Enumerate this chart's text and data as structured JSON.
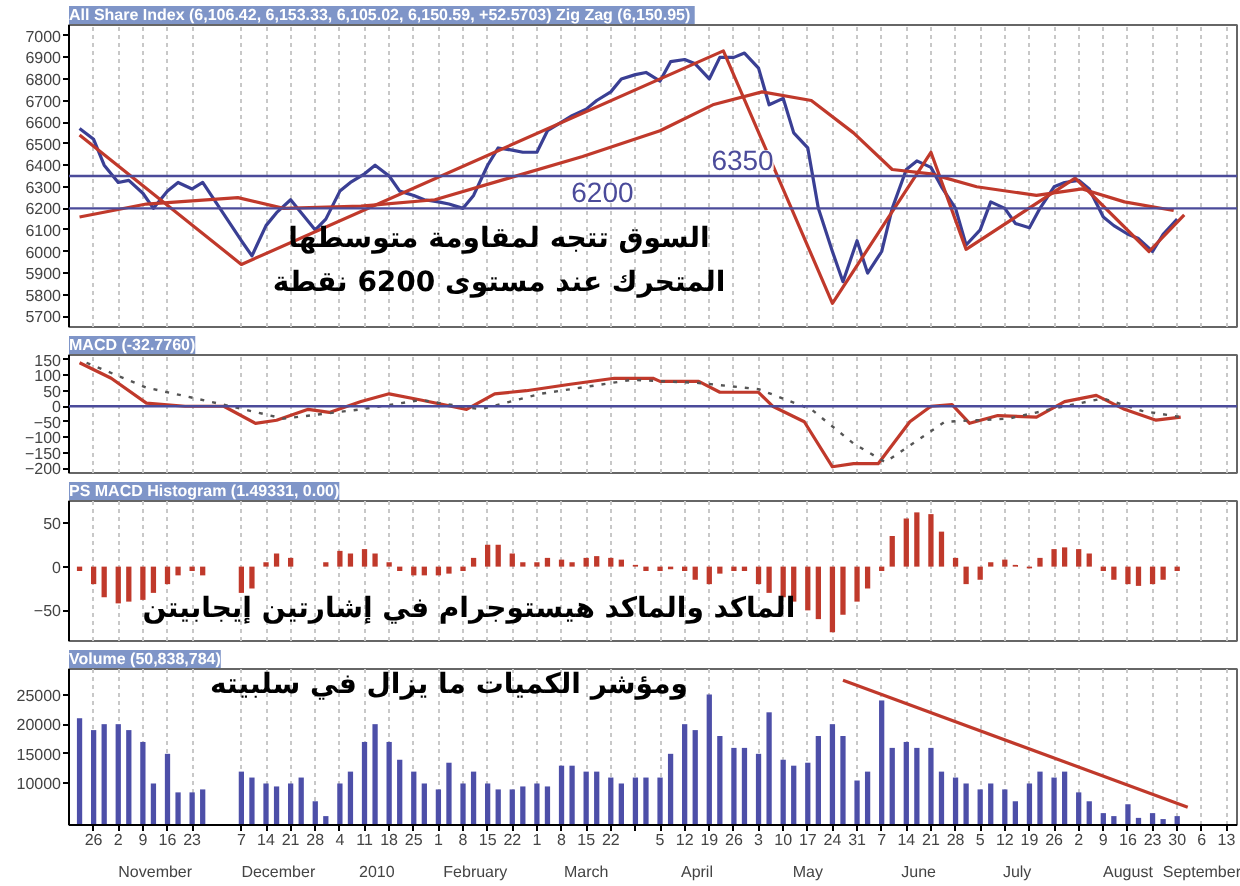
{
  "chart_data": [
    {
      "type": "line",
      "title": "All Share Index (6,106.42, 6,153.33, 6,105.02, 6,150.59, +52.5703)  Zig Zag (6,150.95)",
      "x": [
        "2009-10-22",
        "2009-10-26",
        "2009-10-29",
        "2009-11-02",
        "2009-11-05",
        "2009-11-09",
        "2009-11-12",
        "2009-11-16",
        "2009-11-19",
        "2009-11-23",
        "2009-11-26",
        "2009-12-07",
        "2009-12-10",
        "2009-12-14",
        "2009-12-17",
        "2009-12-21",
        "2009-12-24",
        "2009-12-28",
        "2009-12-31",
        "2010-01-04",
        "2010-01-07",
        "2010-01-11",
        "2010-01-14",
        "2010-01-18",
        "2010-01-21",
        "2010-01-25",
        "2010-01-28",
        "2010-02-01",
        "2010-02-04",
        "2010-02-08",
        "2010-02-11",
        "2010-02-15",
        "2010-02-18",
        "2010-02-22",
        "2010-02-25",
        "2010-03-01",
        "2010-03-04",
        "2010-03-08",
        "2010-03-11",
        "2010-03-15",
        "2010-03-18",
        "2010-03-22",
        "2010-03-25",
        "2010-03-29",
        "2010-04-01",
        "2010-04-05",
        "2010-04-08",
        "2010-04-12",
        "2010-04-15",
        "2010-04-19",
        "2010-04-22",
        "2010-04-26",
        "2010-04-29",
        "2010-05-03",
        "2010-05-06",
        "2010-05-10",
        "2010-05-13",
        "2010-05-17",
        "2010-05-20",
        "2010-05-24",
        "2010-05-27",
        "2010-05-31",
        "2010-06-03",
        "2010-06-07",
        "2010-06-10",
        "2010-06-14",
        "2010-06-17",
        "2010-06-21",
        "2010-06-24",
        "2010-06-28",
        "2010-07-01",
        "2010-07-05",
        "2010-07-08",
        "2010-07-12",
        "2010-07-15",
        "2010-07-19",
        "2010-07-22",
        "2010-07-26",
        "2010-07-29",
        "2010-08-02",
        "2010-08-05",
        "2010-08-09",
        "2010-08-12",
        "2010-08-16",
        "2010-08-19",
        "2010-08-23",
        "2010-08-26",
        "2010-08-30"
      ],
      "series": [
        {
          "color": "#3a3f94",
          "values": [
            6570,
            6520,
            6400,
            6320,
            6330,
            6270,
            6200,
            6280,
            6320,
            6290,
            6320,
            6050,
            5980,
            6120,
            6180,
            6240,
            6180,
            6100,
            6150,
            6280,
            6320,
            6360,
            6400,
            6350,
            6280,
            6260,
            6240,
            6230,
            6220,
            6200,
            6260,
            6400,
            6480,
            6470,
            6460,
            6460,
            6560,
            6600,
            6630,
            6660,
            6700,
            6740,
            6800,
            6820,
            6830,
            6790,
            6880,
            6890,
            6870,
            6800,
            6900,
            6900,
            6920,
            6850,
            6680,
            6710,
            6550,
            6480,
            6200,
            6000,
            5860,
            6050,
            5900,
            6000,
            6200,
            6380,
            6420,
            6390,
            6300,
            6200,
            6030,
            6100,
            6230,
            6200,
            6130,
            6110,
            6200,
            6300,
            6320,
            6330,
            6290,
            6160,
            6120,
            6080,
            6060,
            6000,
            6080,
            6150
          ]
        },
        {
          "color": "#c0392b",
          "x": [
            "2009-10-22",
            "2009-12-07",
            "2010-04-23",
            "2010-05-24",
            "2010-06-21",
            "2010-07-01",
            "2010-08-01",
            "2010-08-22",
            "2010-09-01"
          ],
          "values": [
            6540,
            5940,
            6930,
            5760,
            6460,
            6010,
            6340,
            6000,
            6170
          ]
        },
        {
          "color": "#c0392b",
          "x": [
            "2009-10-22",
            "2009-11-10",
            "2009-12-06",
            "2009-12-19",
            "2010-01-10",
            "2010-01-31",
            "2010-02-21",
            "2010-03-14",
            "2010-04-05",
            "2010-04-20",
            "2010-05-04",
            "2010-05-18",
            "2010-05-30",
            "2010-06-10",
            "2010-06-21",
            "2010-07-04",
            "2010-07-21",
            "2010-08-03",
            "2010-08-15",
            "2010-08-29"
          ],
          "values": [
            6160,
            6220,
            6250,
            6200,
            6210,
            6240,
            6340,
            6440,
            6560,
            6680,
            6740,
            6700,
            6550,
            6380,
            6360,
            6300,
            6260,
            6290,
            6230,
            6190
          ]
        }
      ],
      "ref_lines": [
        {
          "axis": "y",
          "value": 6350,
          "label": "6350",
          "color": "#4b4b9a"
        },
        {
          "axis": "y",
          "value": 6200,
          "label": "6200",
          "color": "#4b4b9a"
        }
      ],
      "annotations": [
        "السوق تتجه لمقاومة متوسطها",
        "المتحرك عند مستوى 6200 نقطة"
      ],
      "xlim": [
        "2009-10-19",
        "2010-09-16"
      ],
      "ylim": [
        5650,
        7050
      ],
      "yticks": [
        5700,
        5800,
        5900,
        6000,
        6100,
        6200,
        6300,
        6400,
        6500,
        6600,
        6700,
        6800,
        6900,
        7000
      ],
      "xticks": [
        "2009-10-26",
        "2009-11-02",
        "2009-11-09",
        "2009-11-16",
        "2009-11-23",
        "2009-12-07",
        "2009-12-14",
        "2009-12-21",
        "2009-12-28",
        "2010-01-04",
        "2010-01-11",
        "2010-01-18",
        "2010-01-25",
        "2010-02-01",
        "2010-02-08",
        "2010-02-15",
        "2010-02-22",
        "2010-03-01",
        "2010-03-08",
        "2010-03-15",
        "2010-03-22",
        "2010-03-29",
        "2010-04-05",
        "2010-04-12",
        "2010-04-19",
        "2010-04-26",
        "2010-05-03",
        "2010-05-10",
        "2010-05-17",
        "2010-05-24",
        "2010-05-31",
        "2010-06-07",
        "2010-06-14",
        "2010-06-21",
        "2010-06-28",
        "2010-07-05",
        "2010-07-12",
        "2010-07-19",
        "2010-07-26",
        "2010-08-02",
        "2010-08-09",
        "2010-08-16",
        "2010-08-23",
        "2010-08-30",
        "2010-09-06",
        "2010-09-13"
      ],
      "tick_labels": "y",
      "grid": "x"
    },
    {
      "type": "line",
      "title": "MACD (-32.7760)",
      "series": [
        {
          "color": "#c0392b",
          "x": [
            "2009-10-22",
            "2009-10-31",
            "2009-11-10",
            "2009-11-21",
            "2009-12-02",
            "2009-12-11",
            "2009-12-17",
            "2009-12-26",
            "2010-01-01",
            "2010-01-10",
            "2010-01-18",
            "2010-01-27",
            "2010-02-09",
            "2010-02-17",
            "2010-02-26",
            "2010-03-10",
            "2010-03-23",
            "2010-04-03",
            "2010-04-05",
            "2010-04-16",
            "2010-04-22",
            "2010-05-03",
            "2010-05-07",
            "2010-05-16",
            "2010-05-24",
            "2010-05-30",
            "2010-06-06",
            "2010-06-15",
            "2010-06-21",
            "2010-06-27",
            "2010-07-02",
            "2010-07-10",
            "2010-07-21",
            "2010-07-29",
            "2010-08-07",
            "2010-08-15",
            "2010-08-24",
            "2010-08-31"
          ],
          "values": [
            140,
            90,
            10,
            0,
            0,
            -55,
            -45,
            -10,
            -20,
            15,
            40,
            20,
            -10,
            40,
            50,
            70,
            90,
            90,
            80,
            80,
            45,
            45,
            0,
            -50,
            -195,
            -185,
            -185,
            -50,
            0,
            5,
            -55,
            -30,
            -35,
            15,
            35,
            -10,
            -45,
            -35
          ]
        },
        {
          "color": "#555555",
          "line_style": "dotted",
          "x": [
            "2009-10-24",
            "2009-11-10",
            "2009-12-02",
            "2009-12-19",
            "2010-01-10",
            "2010-01-27",
            "2010-02-13",
            "2010-03-02",
            "2010-03-28",
            "2010-04-16",
            "2010-05-03",
            "2010-05-18",
            "2010-05-30",
            "2010-06-08",
            "2010-06-25",
            "2010-07-13",
            "2010-07-29",
            "2010-08-09",
            "2010-08-20",
            "2010-08-31"
          ],
          "values": [
            140,
            60,
            5,
            -40,
            -10,
            20,
            -10,
            40,
            85,
            75,
            55,
            -10,
            -120,
            -180,
            -50,
            -40,
            0,
            25,
            -15,
            -35
          ]
        }
      ],
      "ref_lines": [
        {
          "axis": "y",
          "value": 0,
          "color": "#4b4b9a"
        }
      ],
      "xlim": [
        "2009-10-19",
        "2010-09-16"
      ],
      "ylim": [
        -215,
        165
      ],
      "yticks": [
        150,
        100,
        50,
        0,
        -50,
        -100,
        -150,
        -200
      ],
      "xticks": [
        "2009-10-26",
        "2009-11-02",
        "2009-11-09",
        "2009-11-16",
        "2009-11-23",
        "2009-12-07",
        "2009-12-14",
        "2009-12-21",
        "2009-12-28",
        "2010-01-04",
        "2010-01-11",
        "2010-01-18",
        "2010-01-25",
        "2010-02-01",
        "2010-02-08",
        "2010-02-15",
        "2010-02-22",
        "2010-03-01",
        "2010-03-08",
        "2010-03-15",
        "2010-03-22",
        "2010-03-29",
        "2010-04-05",
        "2010-04-12",
        "2010-04-19",
        "2010-04-26",
        "2010-05-03",
        "2010-05-10",
        "2010-05-17",
        "2010-05-24",
        "2010-05-31",
        "2010-06-07",
        "2010-06-14",
        "2010-06-21",
        "2010-06-28",
        "2010-07-05",
        "2010-07-12",
        "2010-07-19",
        "2010-07-26",
        "2010-08-02",
        "2010-08-09",
        "2010-08-16",
        "2010-08-23",
        "2010-08-30",
        "2010-09-06",
        "2010-09-13"
      ],
      "tick_labels": "y",
      "grid": "x"
    },
    {
      "type": "bar",
      "title": "PS MACD Histogram (1.49331, 0.00)",
      "x": [
        "2009-10-22",
        "2009-10-26",
        "2009-10-29",
        "2009-11-02",
        "2009-11-05",
        "2009-11-09",
        "2009-11-12",
        "2009-11-16",
        "2009-11-19",
        "2009-11-23",
        "2009-11-26",
        "2009-12-07",
        "2009-12-10",
        "2009-12-14",
        "2009-12-17",
        "2009-12-21",
        "2009-12-24",
        "2009-12-28",
        "2009-12-31",
        "2010-01-04",
        "2010-01-07",
        "2010-01-11",
        "2010-01-14",
        "2010-01-18",
        "2010-01-21",
        "2010-01-25",
        "2010-01-28",
        "2010-02-01",
        "2010-02-04",
        "2010-02-08",
        "2010-02-11",
        "2010-02-15",
        "2010-02-18",
        "2010-02-22",
        "2010-02-25",
        "2010-03-01",
        "2010-03-04",
        "2010-03-08",
        "2010-03-11",
        "2010-03-15",
        "2010-03-18",
        "2010-03-22",
        "2010-03-25",
        "2010-03-29",
        "2010-04-01",
        "2010-04-05",
        "2010-04-08",
        "2010-04-12",
        "2010-04-15",
        "2010-04-19",
        "2010-04-22",
        "2010-04-26",
        "2010-04-29",
        "2010-05-03",
        "2010-05-06",
        "2010-05-10",
        "2010-05-13",
        "2010-05-17",
        "2010-05-20",
        "2010-05-24",
        "2010-05-27",
        "2010-05-31",
        "2010-06-03",
        "2010-06-07",
        "2010-06-10",
        "2010-06-14",
        "2010-06-17",
        "2010-06-21",
        "2010-06-24",
        "2010-06-28",
        "2010-07-01",
        "2010-07-05",
        "2010-07-08",
        "2010-07-12",
        "2010-07-15",
        "2010-07-19",
        "2010-07-22",
        "2010-07-26",
        "2010-07-29",
        "2010-08-02",
        "2010-08-05",
        "2010-08-09",
        "2010-08-12",
        "2010-08-16",
        "2010-08-19",
        "2010-08-23",
        "2010-08-26",
        "2010-08-30"
      ],
      "series": [
        {
          "color": "#c0392b",
          "values": [
            -5,
            -20,
            -35,
            -42,
            -40,
            -38,
            -30,
            -20,
            -10,
            -5,
            -10,
            -30,
            -25,
            5,
            15,
            10,
            0,
            0,
            5,
            18,
            15,
            20,
            15,
            5,
            -5,
            -10,
            -10,
            -10,
            -8,
            -5,
            10,
            25,
            25,
            15,
            5,
            5,
            10,
            8,
            5,
            10,
            12,
            10,
            8,
            2,
            -5,
            -5,
            -3,
            -5,
            -15,
            -20,
            -8,
            -5,
            -5,
            -20,
            -30,
            -35,
            -40,
            -50,
            -60,
            -75,
            -55,
            -40,
            -25,
            -5,
            35,
            55,
            62,
            60,
            40,
            10,
            -20,
            -15,
            5,
            8,
            2,
            -2,
            10,
            20,
            22,
            20,
            15,
            -5,
            -15,
            -20,
            -22,
            -20,
            -15,
            -5
          ]
        }
      ],
      "annotations": [
        "الماكد والماكد هيستوجرام في إشارتين إيجابيتن"
      ],
      "xlim": [
        "2009-10-19",
        "2010-09-16"
      ],
      "ylim": [
        -85,
        75
      ],
      "yticks": [
        50,
        0,
        -50
      ],
      "xticks": [
        "2009-10-26",
        "2009-11-02",
        "2009-11-09",
        "2009-11-16",
        "2009-11-23",
        "2009-12-07",
        "2009-12-14",
        "2009-12-21",
        "2009-12-28",
        "2010-01-04",
        "2010-01-11",
        "2010-01-18",
        "2010-01-25",
        "2010-02-01",
        "2010-02-08",
        "2010-02-15",
        "2010-02-22",
        "2010-03-01",
        "2010-03-08",
        "2010-03-15",
        "2010-03-22",
        "2010-03-29",
        "2010-04-05",
        "2010-04-12",
        "2010-04-19",
        "2010-04-26",
        "2010-05-03",
        "2010-05-10",
        "2010-05-17",
        "2010-05-24",
        "2010-05-31",
        "2010-06-07",
        "2010-06-14",
        "2010-06-21",
        "2010-06-28",
        "2010-07-05",
        "2010-07-12",
        "2010-07-19",
        "2010-07-26",
        "2010-08-02",
        "2010-08-09",
        "2010-08-16",
        "2010-08-23",
        "2010-08-30",
        "2010-09-06",
        "2010-09-13"
      ],
      "tick_labels": "y",
      "grid": "x"
    },
    {
      "type": "bar",
      "title": "Volume (50,838,784)",
      "x": [
        "2009-10-22",
        "2009-10-26",
        "2009-10-29",
        "2009-11-02",
        "2009-11-05",
        "2009-11-09",
        "2009-11-12",
        "2009-11-16",
        "2009-11-19",
        "2009-11-23",
        "2009-11-26",
        "2009-12-07",
        "2009-12-10",
        "2009-12-14",
        "2009-12-17",
        "2009-12-21",
        "2009-12-24",
        "2009-12-28",
        "2009-12-31",
        "2010-01-04",
        "2010-01-07",
        "2010-01-11",
        "2010-01-14",
        "2010-01-18",
        "2010-01-21",
        "2010-01-25",
        "2010-01-28",
        "2010-02-01",
        "2010-02-04",
        "2010-02-08",
        "2010-02-11",
        "2010-02-15",
        "2010-02-18",
        "2010-02-22",
        "2010-02-25",
        "2010-03-01",
        "2010-03-04",
        "2010-03-08",
        "2010-03-11",
        "2010-03-15",
        "2010-03-18",
        "2010-03-22",
        "2010-03-25",
        "2010-03-29",
        "2010-04-01",
        "2010-04-05",
        "2010-04-08",
        "2010-04-12",
        "2010-04-15",
        "2010-04-19",
        "2010-04-22",
        "2010-04-26",
        "2010-04-29",
        "2010-05-03",
        "2010-05-06",
        "2010-05-10",
        "2010-05-13",
        "2010-05-17",
        "2010-05-20",
        "2010-05-24",
        "2010-05-27",
        "2010-05-31",
        "2010-06-03",
        "2010-06-07",
        "2010-06-10",
        "2010-06-14",
        "2010-06-17",
        "2010-06-21",
        "2010-06-24",
        "2010-06-28",
        "2010-07-01",
        "2010-07-05",
        "2010-07-08",
        "2010-07-12",
        "2010-07-15",
        "2010-07-19",
        "2010-07-22",
        "2010-07-26",
        "2010-07-29",
        "2010-08-02",
        "2010-08-05",
        "2010-08-09",
        "2010-08-12",
        "2010-08-16",
        "2010-08-19",
        "2010-08-23",
        "2010-08-26",
        "2010-08-30"
      ],
      "series": [
        {
          "color": "#4d4fa8",
          "values": [
            21000,
            19000,
            20000,
            20000,
            19000,
            17000,
            10000,
            15000,
            8500,
            8500,
            9000,
            12000,
            11000,
            10000,
            9500,
            10000,
            11000,
            7000,
            4500,
            10000,
            12000,
            17000,
            20000,
            17000,
            14000,
            12000,
            10000,
            9000,
            13500,
            10000,
            12000,
            10000,
            9000,
            9000,
            9500,
            10000,
            9500,
            13000,
            13000,
            12000,
            12000,
            11000,
            10000,
            11000,
            11000,
            11000,
            15000,
            20000,
            19000,
            25000,
            18000,
            16000,
            16000,
            15000,
            22000,
            14000,
            13000,
            13500,
            18000,
            20000,
            18000,
            10500,
            12000,
            24000,
            16000,
            17000,
            16000,
            16000,
            12000,
            11000,
            10000,
            9000,
            10000,
            9000,
            7000,
            10000,
            12000,
            11000,
            12000,
            8500,
            7000,
            5000,
            4500,
            6500,
            4200,
            5000,
            4000,
            4500
          ]
        },
        {
          "type": "line",
          "color": "#c0392b",
          "x": [
            "2010-05-27",
            "2010-09-02"
          ],
          "values": [
            27400,
            6000
          ]
        }
      ],
      "annotations": [
        "ومؤشر الكميات ما يزال في سلبيته",
        "November",
        "December",
        "2010",
        "February",
        "March",
        "April",
        "May",
        "June",
        "July",
        "August",
        "September"
      ],
      "xlim": [
        "2009-10-19",
        "2010-09-16"
      ],
      "ylim": [
        3000,
        29300
      ],
      "yticks": [
        10000,
        15000,
        20000,
        25000
      ],
      "xticks": [
        {
          "value": "2009-10-26",
          "label": "26"
        },
        {
          "value": "2009-11-02",
          "label": "2"
        },
        {
          "value": "2009-11-09",
          "label": "9"
        },
        {
          "value": "2009-11-16",
          "label": "16"
        },
        {
          "value": "2009-11-23",
          "label": "23"
        },
        {
          "value": "2009-12-07",
          "label": "7"
        },
        {
          "value": "2009-12-14",
          "label": "14"
        },
        {
          "value": "2009-12-21",
          "label": "21"
        },
        {
          "value": "2009-12-28",
          "label": "28"
        },
        {
          "value": "2010-01-04",
          "label": "4"
        },
        {
          "value": "2010-01-11",
          "label": "11"
        },
        {
          "value": "2010-01-18",
          "label": "18"
        },
        {
          "value": "2010-01-25",
          "label": "25"
        },
        {
          "value": "2010-02-01",
          "label": "1"
        },
        {
          "value": "2010-02-08",
          "label": "8"
        },
        {
          "value": "2010-02-15",
          "label": "15"
        },
        {
          "value": "2010-02-22",
          "label": "22"
        },
        {
          "value": "2010-03-01",
          "label": "1"
        },
        {
          "value": "2010-03-08",
          "label": "8"
        },
        {
          "value": "2010-03-15",
          "label": "15"
        },
        {
          "value": "2010-03-22",
          "label": "22"
        },
        {
          "value": "2010-03-29",
          "label": null
        },
        {
          "value": "2010-04-05",
          "label": "5"
        },
        {
          "value": "2010-04-12",
          "label": "12"
        },
        {
          "value": "2010-04-19",
          "label": "19"
        },
        {
          "value": "2010-04-26",
          "label": "26"
        },
        {
          "value": "2010-05-03",
          "label": "3"
        },
        {
          "value": "2010-05-10",
          "label": "10"
        },
        {
          "value": "2010-05-17",
          "label": "17"
        },
        {
          "value": "2010-05-24",
          "label": "24"
        },
        {
          "value": "2010-05-31",
          "label": "31"
        },
        {
          "value": "2010-06-07",
          "label": "7"
        },
        {
          "value": "2010-06-14",
          "label": "14"
        },
        {
          "value": "2010-06-21",
          "label": "21"
        },
        {
          "value": "2010-06-28",
          "label": "28"
        },
        {
          "value": "2010-07-05",
          "label": "5"
        },
        {
          "value": "2010-07-12",
          "label": "12"
        },
        {
          "value": "2010-07-19",
          "label": "19"
        },
        {
          "value": "2010-07-26",
          "label": "26"
        },
        {
          "value": "2010-08-02",
          "label": "2"
        },
        {
          "value": "2010-08-09",
          "label": "9"
        },
        {
          "value": "2010-08-16",
          "label": "16"
        },
        {
          "value": "2010-08-23",
          "label": "23"
        },
        {
          "value": "2010-08-30",
          "label": "30"
        },
        {
          "value": "2010-09-06",
          "label": "6"
        },
        {
          "value": "2010-09-13",
          "label": "13"
        }
      ],
      "grid": "x"
    }
  ]
}
